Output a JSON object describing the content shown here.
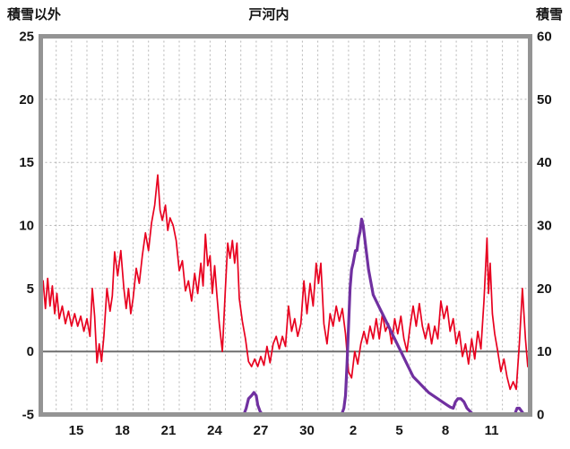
{
  "header": {
    "left_axis_title": "積雪以外",
    "chart_title": "戸河内",
    "right_axis_title": "積雪"
  },
  "chart_data": {
    "type": "line",
    "title": "戸河内",
    "x_axis": {
      "min": 0,
      "max": 31.8,
      "grid_step": 1,
      "tick_labels": [
        "15",
        "18",
        "21",
        "24",
        "27",
        "30",
        "2",
        "5",
        "8",
        "11"
      ],
      "tick_positions": [
        2.3,
        5.3,
        8.3,
        11.3,
        14.3,
        17.3,
        20.3,
        23.3,
        26.3,
        29.3
      ]
    },
    "left_axis": {
      "label": "積雪以外",
      "min": -5,
      "max": 25,
      "ticks": [
        25,
        20,
        15,
        10,
        5,
        0,
        -5
      ],
      "grid_values": [
        20,
        15,
        10,
        5
      ],
      "zero_value": 0
    },
    "right_axis": {
      "label": "積雪",
      "min": 0,
      "max": 60,
      "ticks": [
        60,
        50,
        40,
        30,
        20,
        10,
        0
      ]
    },
    "colors": {
      "frame": "#949494",
      "grid": "#b5b5b5",
      "zero_line": "#6e6e6e",
      "text": "#151515",
      "plot_bg": "#ffffff",
      "red_series": "#e8001f",
      "purple_series": "#7030a0"
    },
    "series": [
      {
        "name": "積雪以外",
        "axis": "left",
        "color": "#e8001f",
        "width": 1.7,
        "points": [
          [
            0,
            4.5
          ],
          [
            0.15,
            5.6
          ],
          [
            0.3,
            3.4
          ],
          [
            0.45,
            5.8
          ],
          [
            0.6,
            3.6
          ],
          [
            0.75,
            5.2
          ],
          [
            0.9,
            3.0
          ],
          [
            1.05,
            4.6
          ],
          [
            1.2,
            2.6
          ],
          [
            1.4,
            3.6
          ],
          [
            1.6,
            2.2
          ],
          [
            1.8,
            3.2
          ],
          [
            2.0,
            2.0
          ],
          [
            2.2,
            3.0
          ],
          [
            2.4,
            2.0
          ],
          [
            2.6,
            2.8
          ],
          [
            2.8,
            1.6
          ],
          [
            3.0,
            2.6
          ],
          [
            3.2,
            1.2
          ],
          [
            3.35,
            5.0
          ],
          [
            3.5,
            2.8
          ],
          [
            3.65,
            -0.9
          ],
          [
            3.8,
            0.6
          ],
          [
            3.95,
            -0.8
          ],
          [
            4.1,
            1.2
          ],
          [
            4.3,
            5.0
          ],
          [
            4.5,
            3.2
          ],
          [
            4.65,
            4.4
          ],
          [
            4.8,
            7.9
          ],
          [
            5.0,
            6.0
          ],
          [
            5.2,
            8.0
          ],
          [
            5.4,
            5.0
          ],
          [
            5.55,
            3.4
          ],
          [
            5.7,
            5.0
          ],
          [
            5.85,
            3.0
          ],
          [
            6.0,
            4.2
          ],
          [
            6.2,
            6.6
          ],
          [
            6.4,
            5.4
          ],
          [
            6.6,
            7.6
          ],
          [
            6.8,
            9.4
          ],
          [
            7.0,
            8.0
          ],
          [
            7.2,
            10.2
          ],
          [
            7.4,
            11.6
          ],
          [
            7.6,
            14.0
          ],
          [
            7.75,
            11.2
          ],
          [
            7.9,
            10.4
          ],
          [
            8.1,
            11.6
          ],
          [
            8.25,
            9.6
          ],
          [
            8.4,
            10.6
          ],
          [
            8.6,
            10.0
          ],
          [
            8.8,
            8.8
          ],
          [
            9.0,
            6.4
          ],
          [
            9.2,
            7.2
          ],
          [
            9.4,
            4.8
          ],
          [
            9.6,
            5.6
          ],
          [
            9.8,
            4.0
          ],
          [
            10.0,
            6.2
          ],
          [
            10.2,
            4.6
          ],
          [
            10.4,
            7.0
          ],
          [
            10.55,
            5.2
          ],
          [
            10.7,
            9.3
          ],
          [
            10.85,
            6.8
          ],
          [
            11.0,
            7.6
          ],
          [
            11.15,
            4.6
          ],
          [
            11.3,
            6.8
          ],
          [
            11.45,
            4.4
          ],
          [
            11.6,
            2.2
          ],
          [
            11.8,
            0.0
          ],
          [
            12.0,
            5.0
          ],
          [
            12.15,
            8.6
          ],
          [
            12.3,
            7.4
          ],
          [
            12.45,
            8.8
          ],
          [
            12.6,
            7.0
          ],
          [
            12.75,
            8.6
          ],
          [
            12.9,
            4.2
          ],
          [
            13.1,
            2.4
          ],
          [
            13.3,
            1.0
          ],
          [
            13.5,
            -0.8
          ],
          [
            13.7,
            -1.2
          ],
          [
            13.9,
            -0.6
          ],
          [
            14.1,
            -1.2
          ],
          [
            14.3,
            -0.4
          ],
          [
            14.5,
            -1.1
          ],
          [
            14.7,
            0.4
          ],
          [
            14.9,
            -0.9
          ],
          [
            15.1,
            0.6
          ],
          [
            15.3,
            1.2
          ],
          [
            15.5,
            0.2
          ],
          [
            15.7,
            1.2
          ],
          [
            15.9,
            0.4
          ],
          [
            16.1,
            3.6
          ],
          [
            16.3,
            1.6
          ],
          [
            16.5,
            2.6
          ],
          [
            16.7,
            1.2
          ],
          [
            16.9,
            2.2
          ],
          [
            17.1,
            5.6
          ],
          [
            17.3,
            3.0
          ],
          [
            17.5,
            5.4
          ],
          [
            17.7,
            3.6
          ],
          [
            17.9,
            7.0
          ],
          [
            18.05,
            5.4
          ],
          [
            18.2,
            7.0
          ],
          [
            18.4,
            2.2
          ],
          [
            18.6,
            0.6
          ],
          [
            18.8,
            3.0
          ],
          [
            19.0,
            2.0
          ],
          [
            19.2,
            3.6
          ],
          [
            19.4,
            2.4
          ],
          [
            19.6,
            3.4
          ],
          [
            19.8,
            1.4
          ],
          [
            20.0,
            -1.6
          ],
          [
            20.2,
            -2.1
          ],
          [
            20.4,
            0.0
          ],
          [
            20.6,
            -1.0
          ],
          [
            20.8,
            0.6
          ],
          [
            21.0,
            1.6
          ],
          [
            21.2,
            0.6
          ],
          [
            21.4,
            2.0
          ],
          [
            21.6,
            1.0
          ],
          [
            21.8,
            2.6
          ],
          [
            22.0,
            1.0
          ],
          [
            22.2,
            3.0
          ],
          [
            22.4,
            1.6
          ],
          [
            22.6,
            2.2
          ],
          [
            22.8,
            0.6
          ],
          [
            23.0,
            2.6
          ],
          [
            23.2,
            1.4
          ],
          [
            23.4,
            2.8
          ],
          [
            23.6,
            1.0
          ],
          [
            23.8,
            0.0
          ],
          [
            24.0,
            2.0
          ],
          [
            24.2,
            3.6
          ],
          [
            24.4,
            2.0
          ],
          [
            24.6,
            3.8
          ],
          [
            24.8,
            2.0
          ],
          [
            25.0,
            1.0
          ],
          [
            25.2,
            2.2
          ],
          [
            25.4,
            0.6
          ],
          [
            25.6,
            2.0
          ],
          [
            25.8,
            1.0
          ],
          [
            26.0,
            4.0
          ],
          [
            26.2,
            2.6
          ],
          [
            26.4,
            3.6
          ],
          [
            26.6,
            1.6
          ],
          [
            26.8,
            2.6
          ],
          [
            27.0,
            0.6
          ],
          [
            27.2,
            1.6
          ],
          [
            27.4,
            -0.4
          ],
          [
            27.6,
            0.6
          ],
          [
            27.8,
            -1.0
          ],
          [
            28.0,
            1.0
          ],
          [
            28.2,
            -0.6
          ],
          [
            28.4,
            1.6
          ],
          [
            28.6,
            0.2
          ],
          [
            28.8,
            4.0
          ],
          [
            29.0,
            9.0
          ],
          [
            29.1,
            4.6
          ],
          [
            29.2,
            7.0
          ],
          [
            29.35,
            3.0
          ],
          [
            29.5,
            1.4
          ],
          [
            29.7,
            0.0
          ],
          [
            29.9,
            -1.6
          ],
          [
            30.1,
            -0.6
          ],
          [
            30.3,
            -2.0
          ],
          [
            30.5,
            -3.0
          ],
          [
            30.7,
            -2.4
          ],
          [
            30.9,
            -3.0
          ],
          [
            31.1,
            0.6
          ],
          [
            31.3,
            5.0
          ],
          [
            31.5,
            1.0
          ],
          [
            31.65,
            -1.2
          ],
          [
            31.8,
            -0.5
          ]
        ]
      },
      {
        "name": "積雪",
        "axis": "right",
        "color": "#7030a0",
        "width": 3.2,
        "points": [
          [
            0,
            0
          ],
          [
            13.2,
            0
          ],
          [
            13.35,
            1
          ],
          [
            13.5,
            2.5
          ],
          [
            13.7,
            3
          ],
          [
            13.85,
            3.5
          ],
          [
            14.0,
            3
          ],
          [
            14.1,
            1.5
          ],
          [
            14.25,
            0.5
          ],
          [
            14.4,
            0
          ],
          [
            19.55,
            0
          ],
          [
            19.7,
            1
          ],
          [
            19.8,
            3
          ],
          [
            19.9,
            8
          ],
          [
            20.0,
            14
          ],
          [
            20.1,
            20
          ],
          [
            20.2,
            23
          ],
          [
            20.3,
            24
          ],
          [
            20.45,
            26
          ],
          [
            20.55,
            26
          ],
          [
            20.65,
            28
          ],
          [
            20.75,
            29
          ],
          [
            20.85,
            31
          ],
          [
            20.95,
            30
          ],
          [
            21.05,
            28
          ],
          [
            21.15,
            26
          ],
          [
            21.3,
            23
          ],
          [
            21.45,
            21
          ],
          [
            21.6,
            19
          ],
          [
            21.8,
            18
          ],
          [
            22.0,
            17
          ],
          [
            22.2,
            16
          ],
          [
            22.4,
            15
          ],
          [
            22.6,
            14
          ],
          [
            22.8,
            13
          ],
          [
            23.0,
            12
          ],
          [
            23.2,
            11
          ],
          [
            23.4,
            10
          ],
          [
            23.6,
            9
          ],
          [
            23.8,
            8
          ],
          [
            24.0,
            7
          ],
          [
            24.2,
            6
          ],
          [
            24.4,
            5.5
          ],
          [
            24.6,
            5
          ],
          [
            24.8,
            4.5
          ],
          [
            25.0,
            4
          ],
          [
            25.2,
            3.5
          ],
          [
            25.5,
            3
          ],
          [
            25.8,
            2.5
          ],
          [
            26.1,
            2
          ],
          [
            26.4,
            1.5
          ],
          [
            26.6,
            1.2
          ],
          [
            26.8,
            1
          ],
          [
            26.95,
            2
          ],
          [
            27.1,
            2.5
          ],
          [
            27.3,
            2.5
          ],
          [
            27.5,
            2
          ],
          [
            27.7,
            1
          ],
          [
            27.9,
            0.5
          ],
          [
            28.1,
            0
          ],
          [
            30.8,
            0
          ],
          [
            30.95,
            1
          ],
          [
            31.1,
            1
          ],
          [
            31.25,
            0.5
          ],
          [
            31.4,
            0
          ],
          [
            31.8,
            0
          ]
        ]
      }
    ]
  }
}
